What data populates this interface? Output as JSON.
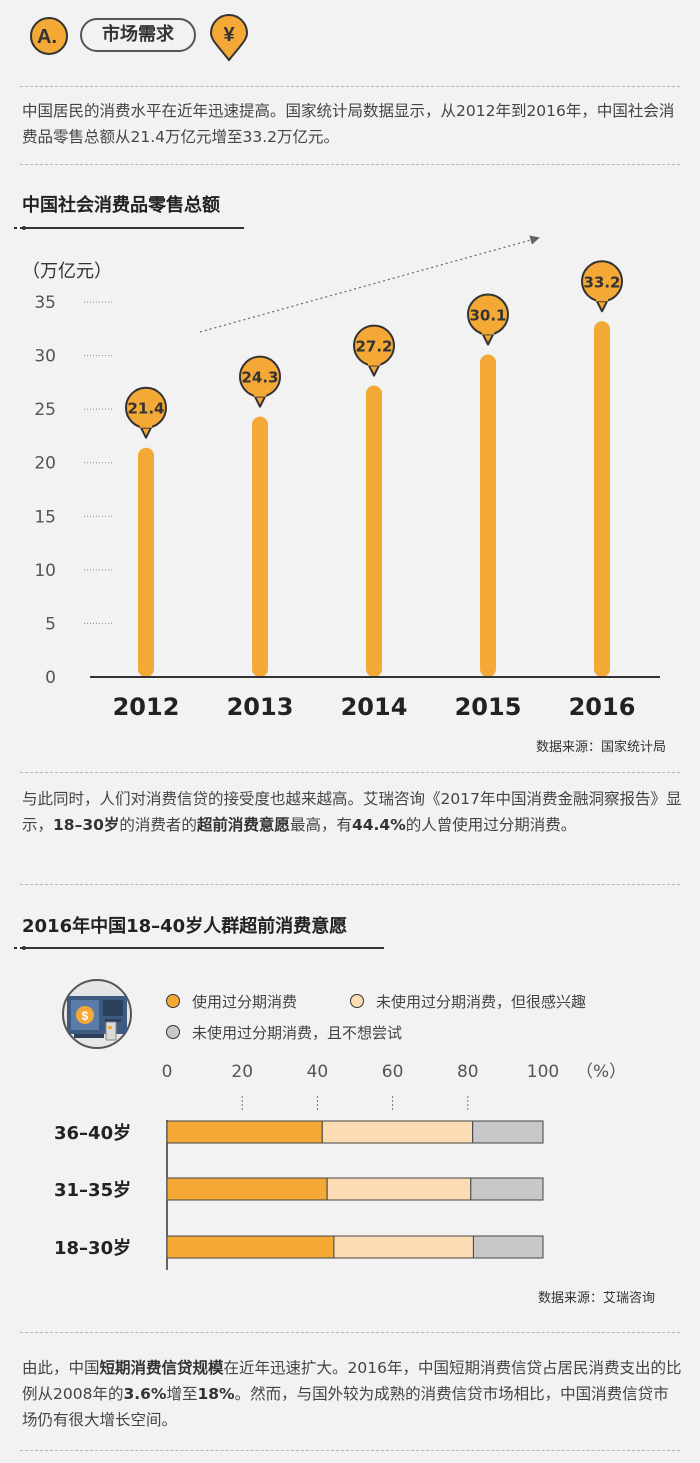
{
  "header": {
    "badge": "A.",
    "tag": "市场需求",
    "currency_icon": "yen-icon"
  },
  "intro": "中国居民的消费水平在近年迅速提高。国家统计局数据显示，从2012年到2016年，中国社会消费品零售总额从21.4万亿元增至33.2万亿元。",
  "chart1": {
    "title": "中国社会消费品零售总额",
    "unit": "（万亿元）",
    "source": "数据来源：国家统计局"
  },
  "para2": {
    "p1": "与此同时，人们对消费信贷的接受度也越来越高。艾瑞咨询《2017年中国消费金融洞察报告》显示，",
    "b1": "18–30岁",
    "p2": "的消费者的",
    "b2": "超前消费意愿",
    "p3": "最高，有",
    "b3": "44.4%",
    "p4": "的人曾使用过分期消费。"
  },
  "chart2": {
    "title": "2016年中国18–40岁人群超前消费意愿",
    "unit": "（%）",
    "source": "数据来源：艾瑞咨询",
    "icon": "atm-card-icon"
  },
  "para3": {
    "p1": "由此，中国",
    "b1": "短期消费信贷规模",
    "p2": "在近年迅速扩大。2016年，中国短期消费信贷占居民消费支出的比例从2008年的",
    "b2": "3.6%",
    "p3": "增至",
    "b3": "18%",
    "p4": "。然而，与国外较为成熟的消费信贷市场相比，中国消费信贷市场仍有很大增长空间。"
  },
  "colors": {
    "orange": "#f4a836",
    "peach": "#fbdcb4",
    "gray": "#c8c8c8",
    "dark": "#333333"
  },
  "chart_data": [
    {
      "type": "bar",
      "title": "中国社会消费品零售总额",
      "ylabel": "（万亿元）",
      "categories": [
        "2012",
        "2013",
        "2014",
        "2015",
        "2016"
      ],
      "values": [
        21.4,
        24.3,
        27.2,
        30.1,
        33.2
      ],
      "yticks": [
        0,
        5,
        10,
        15,
        20,
        25,
        30,
        35
      ],
      "ylim": [
        0,
        35
      ]
    },
    {
      "type": "bar",
      "orientation": "horizontal-stacked",
      "title": "2016年中国18–40岁人群超前消费意愿",
      "unit": "（%）",
      "xticks": [
        0,
        20,
        40,
        60,
        80,
        100
      ],
      "xlim": [
        0,
        100
      ],
      "categories": [
        "36–40岁",
        "31–35岁",
        "18–30岁"
      ],
      "series": [
        {
          "name": "使用过分期消费",
          "color": "#f4a836",
          "values": [
            41.3,
            42.6,
            44.4
          ]
        },
        {
          "name": "未使用过分期消费，但很感兴趣",
          "color": "#fbdcb4",
          "values": [
            40.0,
            38.2,
            37.1
          ]
        },
        {
          "name": "未使用过分期消费，且不想尝试",
          "color": "#c8c8c8",
          "values": [
            18.7,
            19.2,
            18.5
          ]
        }
      ]
    }
  ]
}
